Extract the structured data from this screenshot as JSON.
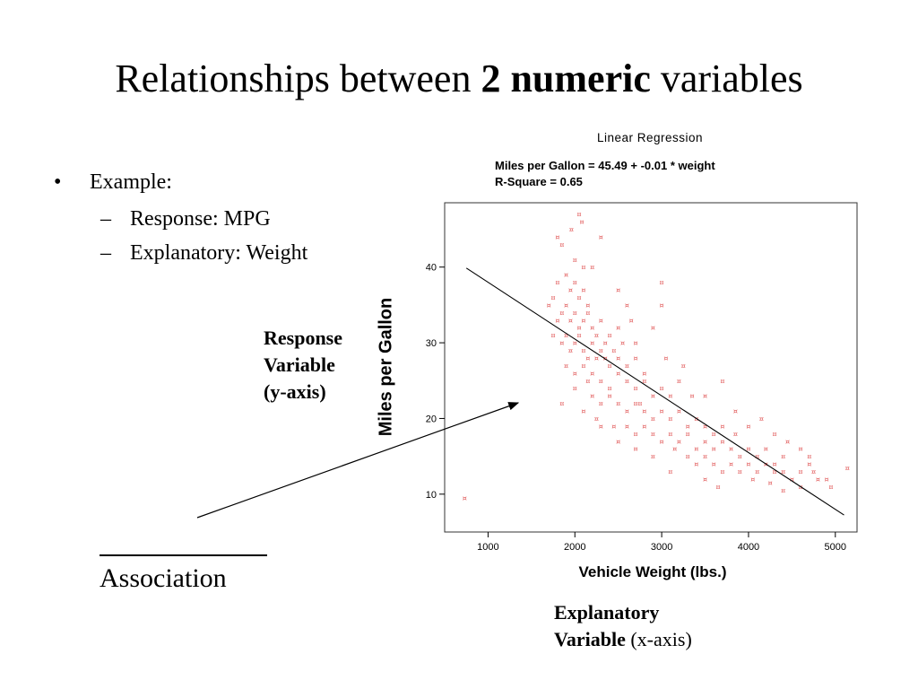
{
  "slide": {
    "title_pre": "Relationships between",
    "title_bold": "2 numeric",
    "title_post": "variables",
    "bullets": {
      "main": "Example:",
      "sub": [
        "Response: MPG",
        "Explanatory: Weight"
      ]
    },
    "association_label": "Association",
    "annotation_y": [
      "Response",
      "Variable",
      "(y-axis)"
    ],
    "annotation_x": [
      "Explanatory",
      "Variable",
      "(x-axis)"
    ]
  },
  "chart_data": {
    "type": "scatter",
    "title": "Linear Regression",
    "equation_text": "Miles per Gallon = 45.49 + -0.01 * weight",
    "r_square_text": "R-Square = 0.65",
    "xlabel": "Vehicle Weight (lbs.)",
    "ylabel": "Miles per Gallon",
    "xlim": [
      500,
      5250
    ],
    "ylim": [
      5,
      48.5
    ],
    "x_ticks": [
      1000,
      2000,
      3000,
      4000,
      5000
    ],
    "y_ticks": [
      10,
      20,
      30,
      40
    ],
    "grid": false,
    "marker_color": "#e05555",
    "line_color": "#000000",
    "regression": {
      "intercept": 45.49,
      "slope": -0.0075,
      "x_range": [
        750,
        5100
      ]
    },
    "points": [
      [
        730,
        9.5
      ],
      [
        1800,
        44
      ],
      [
        1850,
        43
      ],
      [
        1960,
        45
      ],
      [
        2000,
        41
      ],
      [
        2080,
        46
      ],
      [
        2050,
        47
      ],
      [
        2200,
        40
      ],
      [
        1750,
        36
      ],
      [
        1800,
        38
      ],
      [
        1900,
        39
      ],
      [
        1950,
        37
      ],
      [
        2000,
        38
      ],
      [
        2050,
        36
      ],
      [
        2100,
        37
      ],
      [
        2150,
        35
      ],
      [
        1800,
        33
      ],
      [
        1850,
        34
      ],
      [
        1900,
        35
      ],
      [
        1950,
        33
      ],
      [
        2000,
        34
      ],
      [
        2050,
        32
      ],
      [
        2100,
        33
      ],
      [
        2150,
        34
      ],
      [
        2200,
        32
      ],
      [
        2250,
        31
      ],
      [
        2300,
        33
      ],
      [
        2350,
        30
      ],
      [
        2400,
        31
      ],
      [
        2500,
        32
      ],
      [
        1850,
        30
      ],
      [
        1900,
        31
      ],
      [
        1950,
        29
      ],
      [
        2000,
        30
      ],
      [
        2050,
        31
      ],
      [
        2100,
        29
      ],
      [
        2150,
        28
      ],
      [
        2200,
        30
      ],
      [
        2250,
        28
      ],
      [
        2300,
        29
      ],
      [
        2350,
        28
      ],
      [
        2400,
        27
      ],
      [
        2450,
        29
      ],
      [
        2500,
        28
      ],
      [
        2550,
        30
      ],
      [
        2600,
        27
      ],
      [
        2700,
        28
      ],
      [
        2800,
        26
      ],
      [
        1900,
        27
      ],
      [
        2000,
        26
      ],
      [
        2100,
        27
      ],
      [
        2150,
        25
      ],
      [
        2200,
        26
      ],
      [
        2300,
        25
      ],
      [
        2400,
        24
      ],
      [
        2500,
        26
      ],
      [
        2600,
        25
      ],
      [
        2700,
        24
      ],
      [
        2800,
        25
      ],
      [
        2900,
        23
      ],
      [
        3000,
        24
      ],
      [
        3100,
        23
      ],
      [
        2200,
        23
      ],
      [
        2300,
        22
      ],
      [
        2400,
        23
      ],
      [
        2500,
        22
      ],
      [
        2600,
        21
      ],
      [
        2700,
        22
      ],
      [
        2800,
        21
      ],
      [
        2900,
        20
      ],
      [
        3000,
        21
      ],
      [
        3100,
        20
      ],
      [
        3200,
        21
      ],
      [
        3300,
        19
      ],
      [
        3400,
        20
      ],
      [
        3500,
        19
      ],
      [
        3600,
        18
      ],
      [
        2600,
        19
      ],
      [
        2700,
        18
      ],
      [
        2800,
        19
      ],
      [
        2900,
        18
      ],
      [
        3000,
        17
      ],
      [
        3100,
        18
      ],
      [
        3200,
        17
      ],
      [
        3300,
        18
      ],
      [
        3400,
        16
      ],
      [
        3500,
        17
      ],
      [
        3600,
        16
      ],
      [
        3700,
        17
      ],
      [
        3800,
        16
      ],
      [
        3900,
        15
      ],
      [
        4000,
        16
      ],
      [
        4100,
        15
      ],
      [
        4200,
        16
      ],
      [
        4300,
        14
      ],
      [
        4400,
        15
      ],
      [
        3300,
        15
      ],
      [
        3400,
        14
      ],
      [
        3500,
        15
      ],
      [
        3600,
        14
      ],
      [
        3700,
        13
      ],
      [
        3800,
        14
      ],
      [
        3900,
        13
      ],
      [
        4000,
        14
      ],
      [
        4100,
        13
      ],
      [
        4200,
        14
      ],
      [
        4300,
        13
      ],
      [
        4400,
        13
      ],
      [
        4500,
        12
      ],
      [
        4600,
        13
      ],
      [
        4700,
        14
      ],
      [
        4750,
        13
      ],
      [
        4800,
        12
      ],
      [
        4900,
        12
      ],
      [
        4950,
        11
      ],
      [
        5140,
        13.5
      ],
      [
        4600,
        11
      ],
      [
        4400,
        10.5
      ],
      [
        3650,
        11
      ],
      [
        3100,
        13
      ],
      [
        2900,
        15
      ],
      [
        2700,
        16
      ],
      [
        2500,
        17
      ],
      [
        2300,
        19
      ],
      [
        2100,
        21
      ],
      [
        2700,
        30
      ],
      [
        2900,
        32
      ],
      [
        3000,
        38
      ],
      [
        1850,
        22
      ],
      [
        2100,
        40
      ],
      [
        2300,
        44
      ],
      [
        2500,
        37
      ],
      [
        2650,
        33
      ],
      [
        3000,
        35
      ],
      [
        3700,
        25
      ],
      [
        3700,
        19
      ],
      [
        3850,
        21
      ],
      [
        4000,
        19
      ],
      [
        4150,
        20
      ],
      [
        4300,
        18
      ],
      [
        4450,
        17
      ],
      [
        4600,
        16
      ],
      [
        4700,
        15
      ],
      [
        3200,
        25
      ],
      [
        3350,
        23
      ],
      [
        2750,
        22
      ],
      [
        3050,
        28
      ],
      [
        3250,
        27
      ],
      [
        3500,
        23
      ],
      [
        2000,
        24
      ],
      [
        2250,
        20
      ],
      [
        2450,
        19
      ],
      [
        1750,
        31
      ],
      [
        1700,
        35
      ],
      [
        2600,
        35
      ],
      [
        3850,
        18
      ],
      [
        4050,
        12
      ],
      [
        4250,
        11.5
      ],
      [
        3500,
        12
      ],
      [
        3150,
        16
      ]
    ]
  }
}
